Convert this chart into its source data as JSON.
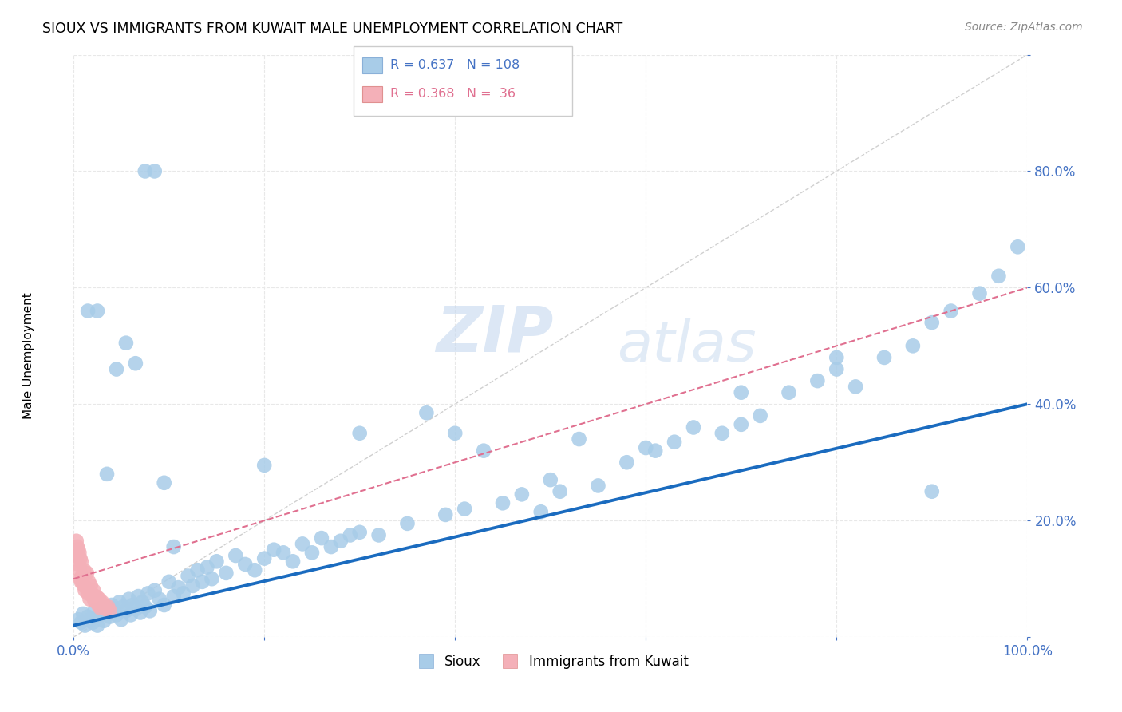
{
  "title": "SIOUX VS IMMIGRANTS FROM KUWAIT MALE UNEMPLOYMENT CORRELATION CHART",
  "source": "Source: ZipAtlas.com",
  "ylabel": "Male Unemployment",
  "xlim": [
    0,
    1.0
  ],
  "ylim": [
    0,
    1.0
  ],
  "xticks": [
    0.0,
    0.2,
    0.4,
    0.6,
    0.8,
    1.0
  ],
  "yticks": [
    0.0,
    0.2,
    0.4,
    0.6,
    0.8,
    1.0
  ],
  "xtick_labels_bottom": [
    "0.0%",
    "",
    "",
    "",
    "",
    "100.0%"
  ],
  "ytick_labels_right": [
    "",
    "20.0%",
    "40.0%",
    "60.0%",
    "80.0%",
    ""
  ],
  "background_color": "#ffffff",
  "watermark_zip": "ZIP",
  "watermark_atlas": "atlas",
  "legend_r1": "R = 0.637",
  "legend_n1": "N = 108",
  "legend_r2": "R = 0.368",
  "legend_n2": "N =  36",
  "sioux_marker_color": "#a8cce8",
  "kuwait_marker_color": "#f4b0b8",
  "sioux_line_color": "#1a6bbf",
  "kuwait_line_color": "#e07090",
  "diagonal_line_color": "#d0d0d0",
  "grid_color": "#e8e8e8",
  "tick_color": "#4472c4",
  "sioux_x": [
    0.005,
    0.008,
    0.01,
    0.012,
    0.015,
    0.018,
    0.02,
    0.022,
    0.025,
    0.028,
    0.03,
    0.032,
    0.035,
    0.038,
    0.04,
    0.042,
    0.045,
    0.048,
    0.05,
    0.052,
    0.055,
    0.058,
    0.06,
    0.062,
    0.065,
    0.068,
    0.07,
    0.072,
    0.075,
    0.078,
    0.08,
    0.085,
    0.09,
    0.095,
    0.1,
    0.105,
    0.11,
    0.115,
    0.12,
    0.125,
    0.13,
    0.135,
    0.14,
    0.145,
    0.15,
    0.16,
    0.17,
    0.18,
    0.19,
    0.2,
    0.21,
    0.22,
    0.23,
    0.24,
    0.25,
    0.26,
    0.27,
    0.28,
    0.29,
    0.3,
    0.32,
    0.35,
    0.37,
    0.39,
    0.41,
    0.43,
    0.45,
    0.47,
    0.49,
    0.51,
    0.53,
    0.55,
    0.58,
    0.61,
    0.63,
    0.65,
    0.68,
    0.7,
    0.72,
    0.75,
    0.78,
    0.8,
    0.82,
    0.85,
    0.88,
    0.9,
    0.92,
    0.95,
    0.97,
    0.99,
    0.015,
    0.025,
    0.035,
    0.045,
    0.055,
    0.065,
    0.075,
    0.085,
    0.095,
    0.105,
    0.2,
    0.3,
    0.4,
    0.5,
    0.6,
    0.7,
    0.8,
    0.9
  ],
  "sioux_y": [
    0.03,
    0.025,
    0.04,
    0.02,
    0.035,
    0.03,
    0.025,
    0.045,
    0.02,
    0.038,
    0.05,
    0.028,
    0.042,
    0.035,
    0.055,
    0.048,
    0.038,
    0.06,
    0.03,
    0.052,
    0.045,
    0.065,
    0.038,
    0.055,
    0.048,
    0.07,
    0.042,
    0.06,
    0.052,
    0.075,
    0.045,
    0.08,
    0.065,
    0.055,
    0.095,
    0.07,
    0.085,
    0.075,
    0.105,
    0.088,
    0.115,
    0.095,
    0.12,
    0.1,
    0.13,
    0.11,
    0.14,
    0.125,
    0.115,
    0.135,
    0.15,
    0.145,
    0.13,
    0.16,
    0.145,
    0.17,
    0.155,
    0.165,
    0.175,
    0.18,
    0.175,
    0.195,
    0.385,
    0.21,
    0.22,
    0.32,
    0.23,
    0.245,
    0.215,
    0.25,
    0.34,
    0.26,
    0.3,
    0.32,
    0.335,
    0.36,
    0.35,
    0.42,
    0.38,
    0.42,
    0.44,
    0.46,
    0.43,
    0.48,
    0.5,
    0.54,
    0.56,
    0.59,
    0.62,
    0.67,
    0.56,
    0.56,
    0.28,
    0.46,
    0.505,
    0.47,
    0.8,
    0.8,
    0.265,
    0.155,
    0.295,
    0.35,
    0.35,
    0.27,
    0.325,
    0.365,
    0.48,
    0.25
  ],
  "kuwait_x": [
    0.003,
    0.005,
    0.006,
    0.007,
    0.008,
    0.009,
    0.01,
    0.011,
    0.012,
    0.013,
    0.014,
    0.015,
    0.016,
    0.017,
    0.018,
    0.019,
    0.02,
    0.021,
    0.022,
    0.023,
    0.024,
    0.025,
    0.026,
    0.027,
    0.028,
    0.03,
    0.032,
    0.034,
    0.036,
    0.038,
    0.003,
    0.004,
    0.005,
    0.006,
    0.007,
    0.008
  ],
  "kuwait_y": [
    0.14,
    0.125,
    0.115,
    0.1,
    0.095,
    0.105,
    0.09,
    0.115,
    0.08,
    0.085,
    0.11,
    0.075,
    0.095,
    0.065,
    0.088,
    0.075,
    0.07,
    0.08,
    0.062,
    0.07,
    0.06,
    0.068,
    0.055,
    0.065,
    0.05,
    0.06,
    0.055,
    0.048,
    0.052,
    0.045,
    0.165,
    0.155,
    0.15,
    0.145,
    0.135,
    0.13
  ]
}
